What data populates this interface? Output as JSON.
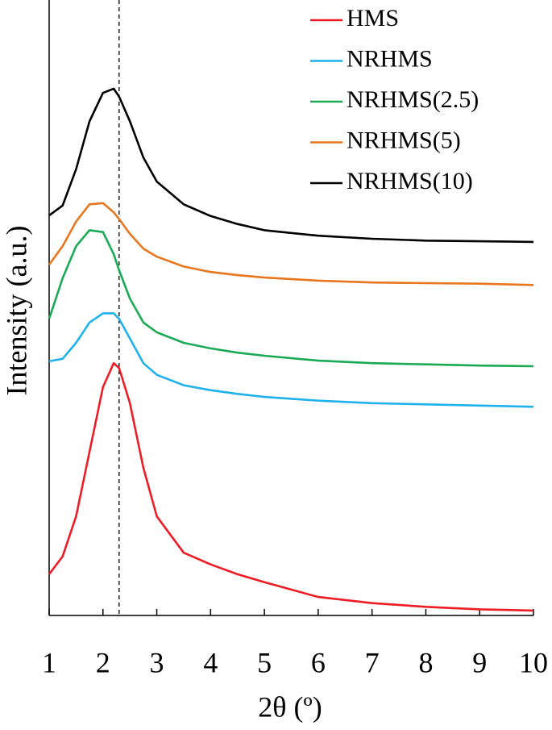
{
  "chart_data": {
    "type": "line",
    "xlabel": "2θ (º)",
    "ylabel": "Intensity (a.u.)",
    "x": [
      1,
      1.25,
      1.5,
      1.75,
      2,
      2.2,
      2.3,
      2.5,
      2.75,
      3,
      3.5,
      4,
      4.5,
      5,
      6,
      7,
      8,
      9,
      10
    ],
    "series": [
      {
        "name": "HMS",
        "color": "#ee1c25",
        "values": [
          6.7,
          9.6,
          16.1,
          26.6,
          37.1,
          41.0,
          40.2,
          34.5,
          24.0,
          16.1,
          10.2,
          8.3,
          6.7,
          5.4,
          3.0,
          2.0,
          1.4,
          1.0,
          0.8
        ]
      },
      {
        "name": "NRHMS",
        "color": "#1fb1ec",
        "values": [
          41.3,
          41.7,
          44.3,
          47.6,
          49.1,
          49.1,
          48.2,
          45.0,
          41.0,
          39.1,
          37.4,
          36.6,
          36.0,
          35.5,
          34.9,
          34.5,
          34.3,
          34.1,
          33.9
        ]
      },
      {
        "name": "NRHMS(2.5)",
        "color": "#1aaa55",
        "values": [
          48.2,
          54.8,
          60.0,
          62.6,
          62.3,
          58.7,
          56.1,
          51.5,
          47.6,
          46.0,
          44.3,
          43.4,
          42.7,
          42.2,
          41.4,
          41.0,
          40.8,
          40.6,
          40.5
        ]
      },
      {
        "name": "NRHMS(5)",
        "color": "#e8761e",
        "values": [
          57.0,
          60.0,
          64.0,
          66.8,
          67.0,
          65.5,
          64.4,
          62.0,
          59.6,
          58.3,
          56.7,
          55.8,
          55.3,
          54.9,
          54.4,
          54.1,
          54.0,
          53.9,
          53.7
        ]
      },
      {
        "name": "NRHMS(10)",
        "color": "#000000",
        "values": [
          65.0,
          66.6,
          72.5,
          80.3,
          84.9,
          85.6,
          84.3,
          80.3,
          74.4,
          70.5,
          66.8,
          64.9,
          63.6,
          62.6,
          61.7,
          61.2,
          60.9,
          60.8,
          60.7
        ]
      }
    ],
    "xlim": [
      1,
      10
    ],
    "xticks": [
      1,
      2,
      3,
      4,
      5,
      6,
      7,
      8,
      9,
      10
    ],
    "ylim": [
      0,
      100
    ],
    "vline": 2.3,
    "legend": "upper right"
  }
}
